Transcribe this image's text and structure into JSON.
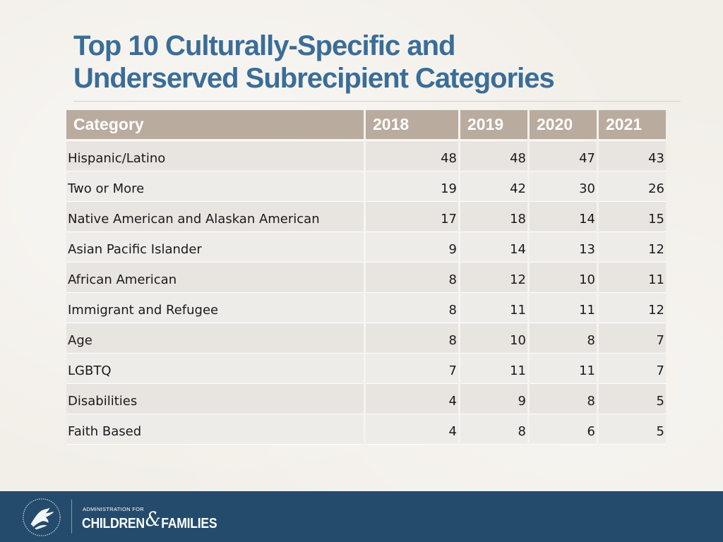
{
  "slide": {
    "title_line1": "Top 10 Culturally-Specific and",
    "title_line2": "Underserved Subrecipient Categories"
  },
  "table": {
    "headers": [
      "Category",
      "2018",
      "2019",
      "2020",
      "2021"
    ],
    "rows": [
      {
        "category": "Hispanic/Latino",
        "values": [
          "48",
          "48",
          "47",
          "43"
        ]
      },
      {
        "category": "Two or More",
        "values": [
          "19",
          "42",
          "30",
          "26"
        ]
      },
      {
        "category": "Native American and Alaskan American",
        "values": [
          "17",
          "18",
          "14",
          "15"
        ]
      },
      {
        "category": "Asian Pacific Islander",
        "values": [
          "9",
          "14",
          "13",
          "12"
        ]
      },
      {
        "category": "African American",
        "values": [
          "8",
          "12",
          "10",
          "11"
        ]
      },
      {
        "category": "Immigrant and Refugee",
        "values": [
          "8",
          "11",
          "11",
          "12"
        ]
      },
      {
        "category": "Age",
        "values": [
          "8",
          "10",
          "8",
          "7"
        ]
      },
      {
        "category": "LGBTQ",
        "values": [
          "7",
          "11",
          "11",
          "7"
        ]
      },
      {
        "category": "Disabilities",
        "values": [
          "4",
          "9",
          "8",
          "5"
        ]
      },
      {
        "category": "Faith Based",
        "values": [
          "4",
          "8",
          "6",
          "5"
        ]
      }
    ]
  },
  "footer": {
    "agency_small": "ADMINISTRATION FOR",
    "agency_children": "CHILDREN",
    "agency_amp": "&",
    "agency_families": "FAMILIES",
    "logo_icon": "hhs-eagle-seal-icon"
  },
  "colors": {
    "title": "#3a6d98",
    "header_bg": "#b9ab9e",
    "footer_bg": "#244b6b"
  }
}
